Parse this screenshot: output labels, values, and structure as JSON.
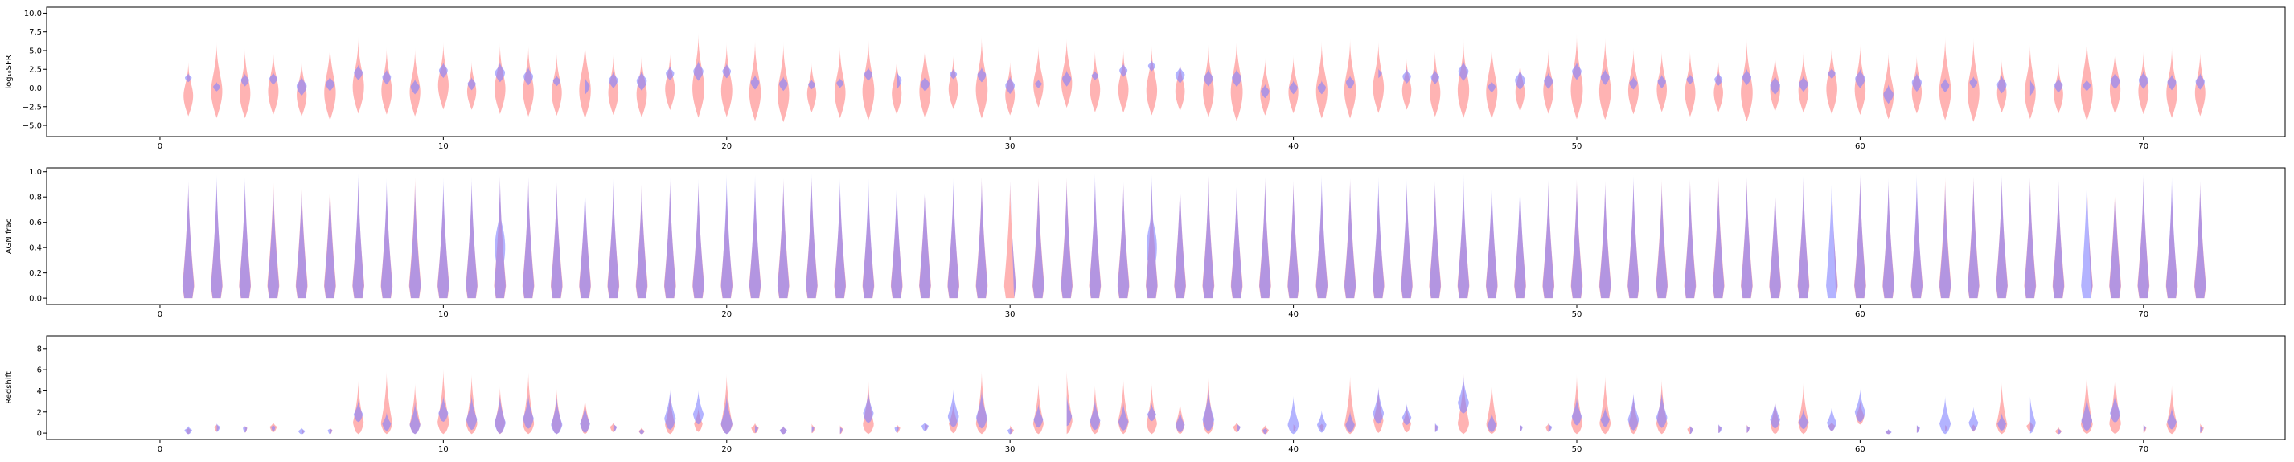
{
  "colors": {
    "red": "#ff8080",
    "blue": "#8080ff",
    "axes": "#000000"
  },
  "chart_data": [
    {
      "type": "violin",
      "ylabel": "log₁₀SFR",
      "xlim": [
        -4,
        75
      ],
      "ylim": [
        -6.5,
        10.8
      ],
      "xticks": [
        0,
        10,
        20,
        30,
        40,
        50,
        60,
        70
      ],
      "yticks": [
        -5.0,
        -2.5,
        0.0,
        2.5,
        5.0,
        7.5,
        10.0
      ],
      "ytick_labels": [
        "−5.0",
        "−2.5",
        "0.0",
        "2.5",
        "5.0",
        "7.5",
        "10.0"
      ],
      "series": [
        {
          "color": "red",
          "medians": [
            -1.0,
            -0.4,
            -0.7,
            -0.4,
            -0.9,
            -0.6,
            0.2,
            -0.3,
            -0.5,
            0.4,
            -0.4,
            -0.1,
            -0.4,
            -0.6,
            -0.3,
            -0.6,
            -0.8,
            -0.1,
            0.0,
            -0.3,
            -0.6,
            -0.8,
            -0.7,
            -0.6,
            -0.4,
            -0.7,
            -0.4,
            -0.1,
            -0.2,
            -0.9,
            0.4,
            0.7,
            -0.2,
            -0.2,
            -0.3,
            -0.4,
            -0.4,
            -0.5,
            -0.8,
            -0.5,
            -0.4,
            -0.3,
            0.1,
            -0.3,
            -0.6,
            -0.3,
            -0.5,
            -0.5,
            -0.3,
            -0.2,
            -0.4,
            -0.3,
            -0.2,
            -0.6,
            -0.6,
            -0.6,
            -0.2,
            -0.3,
            -0.1,
            -0.2,
            -0.9,
            -0.5,
            -0.4,
            -0.6,
            -0.6,
            -0.6,
            -0.8,
            -0.4,
            -0.2,
            -0.4,
            -0.6,
            -0.6
          ]
        },
        {
          "color": "blue",
          "medians": [
            1.4,
            0.2,
            1.1,
            1.3,
            0.3,
            0.6,
            2.1,
            1.5,
            0.2,
            2.4,
            0.6,
            2.1,
            1.6,
            1.0,
            0.3,
            1.1,
            1.0,
            2.0,
            2.3,
            2.3,
            0.8,
            0.6,
            0.5,
            0.7,
            1.9,
            1.1,
            0.6,
            1.9,
            1.8,
            0.4,
            0.6,
            1.3,
            1.7,
            2.4,
            3.0,
            1.8,
            1.4,
            1.4,
            -0.4,
            0.1,
            0.1,
            0.8,
            2.0,
            1.6,
            1.5,
            2.3,
            0.2,
            1.1,
            1.0,
            2.3,
            1.5,
            0.7,
            0.9,
            1.2,
            1.2,
            1.5,
            0.4,
            0.6,
            2.0,
            1.3,
            -0.8,
            0.8,
            0.4,
            0.8,
            0.5,
            0.1,
            0.4,
            0.4,
            1.0,
            1.1,
            0.8,
            0.9
          ]
        }
      ]
    },
    {
      "type": "violin",
      "ylabel": "AGN frac",
      "xlim": [
        -4,
        75
      ],
      "ylim": [
        -0.05,
        1.03
      ],
      "xticks": [
        0,
        10,
        20,
        30,
        40,
        50,
        60,
        70
      ],
      "yticks": [
        0.0,
        0.2,
        0.4,
        0.6,
        0.8,
        1.0
      ],
      "ytick_labels": [
        "0.0",
        "0.2",
        "0.4",
        "0.6",
        "0.8",
        "1.0"
      ],
      "series": [
        {
          "color": "red",
          "medians": [
            0.08,
            0.1,
            0.1,
            0.1,
            0.1,
            0.1,
            0.1,
            0.1,
            0.1,
            0.1,
            0.1,
            0.1,
            0.1,
            0.1,
            0.1,
            0.1,
            0.1,
            0.1,
            0.1,
            0.1,
            0.1,
            0.1,
            0.1,
            0.1,
            0.1,
            0.1,
            0.1,
            0.1,
            0.1,
            0.1,
            0.1,
            0.1,
            0.1,
            0.1,
            0.1,
            0.1,
            0.1,
            0.1,
            0.1,
            0.1,
            0.1,
            0.1,
            0.1,
            0.1,
            0.1,
            0.1,
            0.1,
            0.1,
            0.1,
            0.1,
            0.1,
            0.1,
            0.1,
            0.1,
            0.1,
            0.1,
            0.1,
            0.1,
            0.1,
            0.1,
            0.1,
            0.1,
            0.1,
            0.1,
            0.1,
            0.1,
            0.1,
            0.1,
            0.1,
            0.1,
            0.1,
            0.1
          ]
        },
        {
          "color": "blue",
          "medians": [
            0.12,
            0.1,
            0.1,
            0.1,
            0.1,
            0.1,
            0.1,
            0.1,
            0.1,
            0.1,
            0.1,
            0.25,
            0.1,
            0.1,
            0.1,
            0.1,
            0.1,
            0.1,
            0.1,
            0.1,
            0.1,
            0.1,
            0.1,
            0.1,
            0.1,
            0.1,
            0.1,
            0.1,
            0.1,
            0.1,
            0.1,
            0.1,
            0.1,
            0.1,
            0.25,
            0.1,
            0.1,
            0.1,
            0.1,
            0.1,
            0.1,
            0.1,
            0.1,
            0.1,
            0.1,
            0.1,
            0.1,
            0.1,
            0.1,
            0.1,
            0.1,
            0.1,
            0.1,
            0.1,
            0.1,
            0.1,
            0.1,
            0.1,
            0.1,
            0.1,
            0.1,
            0.1,
            0.1,
            0.1,
            0.1,
            0.1,
            0.1,
            0.1,
            0.1,
            0.1,
            0.1,
            0.1
          ]
        }
      ]
    },
    {
      "type": "violin",
      "ylabel": "Redshift",
      "xlim": [
        -4,
        75
      ],
      "ylim": [
        -0.6,
        9.2
      ],
      "xticks": [
        0,
        10,
        20,
        30,
        40,
        50,
        60,
        70
      ],
      "yticks": [
        0,
        2,
        4,
        6,
        8
      ],
      "ytick_labels": [
        "0",
        "2",
        "4",
        "6",
        "8"
      ],
      "series": [
        {
          "color": "red",
          "medians": [
            0.3,
            0.6,
            0.5,
            0.6,
            0.2,
            0.3,
            1.0,
            0.9,
            0.8,
            1.0,
            0.9,
            1.0,
            0.9,
            0.8,
            0.9,
            0.6,
            0.2,
            0.8,
            0.9,
            0.8,
            0.5,
            0.3,
            0.5,
            0.4,
            0.8,
            0.5,
            0.7,
            0.9,
            0.9,
            0.3,
            0.9,
            1.2,
            0.9,
            1.1,
            0.9,
            0.8,
            0.9,
            0.6,
            0.3,
            0.6,
            0.7,
            0.8,
            1.2,
            0.9,
            0.6,
            0.9,
            0.8,
            0.6,
            0.6,
            0.9,
            0.9,
            0.9,
            0.9,
            0.4,
            0.5,
            0.5,
            0.8,
            1.0,
            0.7,
            1.6,
            0.1,
            0.5,
            0.6,
            0.6,
            0.8,
            0.7,
            0.2,
            0.8,
            0.9,
            0.5,
            0.8,
            0.5
          ]
        },
        {
          "color": "blue",
          "medians": [
            0.3,
            0.6,
            0.5,
            0.6,
            0.2,
            0.3,
            1.8,
            0.9,
            0.8,
            1.9,
            1.3,
            1.0,
            1.4,
            0.8,
            0.9,
            0.6,
            0.2,
            1.4,
            1.8,
            0.9,
            0.5,
            0.3,
            0.5,
            0.4,
            1.9,
            0.5,
            0.7,
            1.6,
            1.5,
            0.3,
            1.3,
            1.6,
            1.2,
            1.1,
            1.8,
            0.8,
            1.3,
            0.6,
            0.3,
            0.8,
            0.8,
            0.8,
            1.9,
            1.5,
            0.6,
            2.9,
            0.8,
            0.6,
            0.6,
            1.6,
            1.3,
            1.3,
            1.5,
            0.4,
            0.5,
            0.5,
            1.3,
            1.1,
            1.0,
            2.0,
            0.1,
            0.5,
            0.9,
            1.0,
            0.9,
            1.0,
            0.2,
            1.2,
            1.9,
            0.6,
            1.1,
            0.5
          ]
        }
      ]
    }
  ]
}
